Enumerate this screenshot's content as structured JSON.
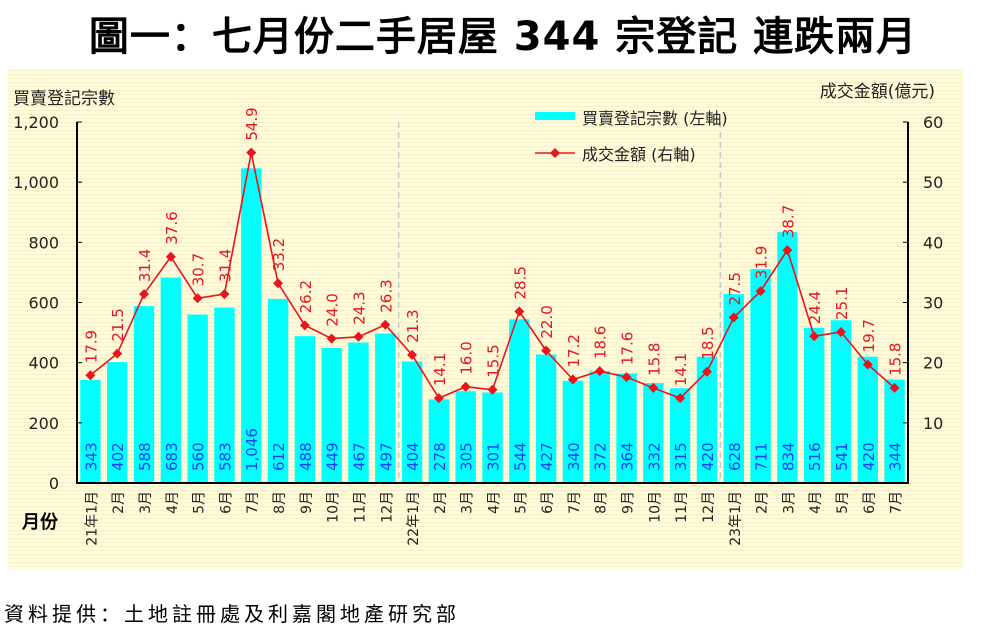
{
  "title": "圖一：七月份二手居屋 344 宗登記  連跌兩月",
  "source": "資料提供：土地註冊處及利嘉閣地產研究部",
  "chart_data": {
    "type": "bar+line",
    "left_axis_label": "買賣登記宗數",
    "right_axis_label": "成交金額(億元)",
    "x_axis_label": "月份",
    "left_ylim": [
      0,
      1200
    ],
    "left_ticks": [
      "0",
      "200",
      "400",
      "600",
      "800",
      "1,000",
      "1,200"
    ],
    "right_ylim": [
      0,
      60
    ],
    "right_ticks": [
      "10",
      "20",
      "30",
      "40",
      "50",
      "60"
    ],
    "legend_placement": "top-center",
    "categories": [
      "21年1月",
      "2月",
      "3月",
      "4月",
      "5月",
      "6月",
      "7月",
      "8月",
      "9月",
      "10月",
      "11月",
      "12月",
      "22年1月",
      "2月",
      "3月",
      "4月",
      "5月",
      "6月",
      "7月",
      "8月",
      "9月",
      "10月",
      "11月",
      "12月",
      "23年1月",
      "2月",
      "3月",
      "4月",
      "5月",
      "6月",
      "7月"
    ],
    "year_dividers_before": [
      "22年1月",
      "23年1月"
    ],
    "series": [
      {
        "name": "買賣登記宗數 (左軸)",
        "type": "bar",
        "axis": "left",
        "color": "#00FFFF",
        "label_color": "#1E3CFF",
        "values": [
          343,
          402,
          588,
          683,
          560,
          583,
          1046,
          612,
          488,
          449,
          467,
          497,
          404,
          278,
          305,
          301,
          544,
          427,
          340,
          372,
          364,
          332,
          315,
          420,
          628,
          711,
          834,
          516,
          541,
          420,
          344
        ],
        "labels": [
          "343",
          "402",
          "588",
          "683",
          "560",
          "583",
          "1,046",
          "612",
          "488",
          "449",
          "467",
          "497",
          "404",
          "278",
          "305",
          "301",
          "544",
          "427",
          "340",
          "372",
          "364",
          "332",
          "315",
          "420",
          "628",
          "711",
          "834",
          "516",
          "541",
          "420",
          "344"
        ]
      },
      {
        "name": "成交金額 (右軸)",
        "type": "line",
        "axis": "right",
        "color": "#E8141E",
        "values": [
          17.9,
          21.5,
          31.4,
          37.6,
          30.7,
          31.4,
          54.9,
          33.2,
          26.2,
          24.0,
          24.3,
          26.3,
          21.3,
          14.1,
          16.0,
          15.5,
          28.5,
          22.0,
          17.2,
          18.6,
          17.6,
          15.8,
          14.1,
          18.5,
          27.5,
          31.9,
          38.7,
          24.4,
          25.1,
          19.7,
          15.8
        ],
        "labels": [
          "17.9",
          "21.5",
          "31.4",
          "37.6",
          "30.7",
          "31.4",
          "54.9",
          "33.2",
          "26.2",
          "24.0",
          "24.3",
          "26.3",
          "21.3",
          "14.1",
          "16.0",
          "15.5",
          "28.5",
          "22.0",
          "17.2",
          "18.6",
          "17.6",
          "15.8",
          "14.1",
          "18.5",
          "27.5",
          "31.9",
          "38.7",
          "24.4",
          "25.1",
          "19.7",
          "15.8"
        ]
      }
    ],
    "background_color": "#FFFBDC"
  }
}
